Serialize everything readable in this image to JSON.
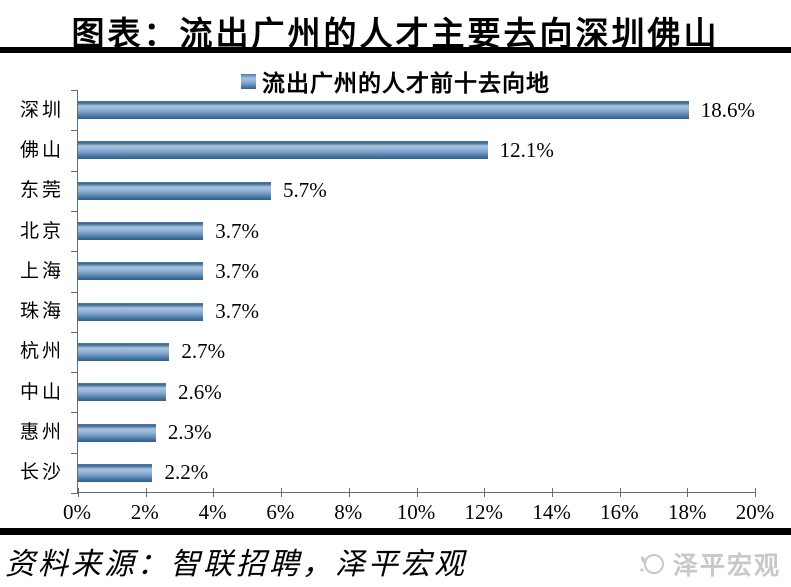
{
  "figure": {
    "title": "图表：流出广州的人才主要去向深圳佛山"
  },
  "chart_data": {
    "type": "bar",
    "orientation": "horizontal",
    "legend": "流出广州的人才前十去向地",
    "legend_position": "top-center",
    "categories": [
      "深圳",
      "佛山",
      "东莞",
      "北京",
      "上海",
      "珠海",
      "杭州",
      "中山",
      "惠州",
      "长沙"
    ],
    "values": [
      18.6,
      12.1,
      5.7,
      3.7,
      3.7,
      3.7,
      2.7,
      2.6,
      2.3,
      2.2
    ],
    "value_labels": [
      "18.6%",
      "12.1%",
      "5.7%",
      "3.7%",
      "3.7%",
      "3.7%",
      "2.7%",
      "2.6%",
      "2.3%",
      "2.2%"
    ],
    "xlim": [
      0,
      20
    ],
    "xticks": [
      "0%",
      "2%",
      "4%",
      "6%",
      "8%",
      "10%",
      "12%",
      "14%",
      "16%",
      "18%",
      "20%"
    ],
    "grid": false
  },
  "footer": {
    "source": "资料来源：智联招聘，泽平宏观",
    "logo_icon": "zeping-macro-emblem",
    "logo_text": "泽平宏观"
  },
  "colors": {
    "bar_gradient_top": "#4d7dab",
    "bar_gradient_light": "#a9c3de",
    "bar_gradient_bottom": "#2f5f8c",
    "axis_line": "#6b6b6b",
    "divider": "#000000",
    "logo_gray": "#c8c8c8"
  }
}
